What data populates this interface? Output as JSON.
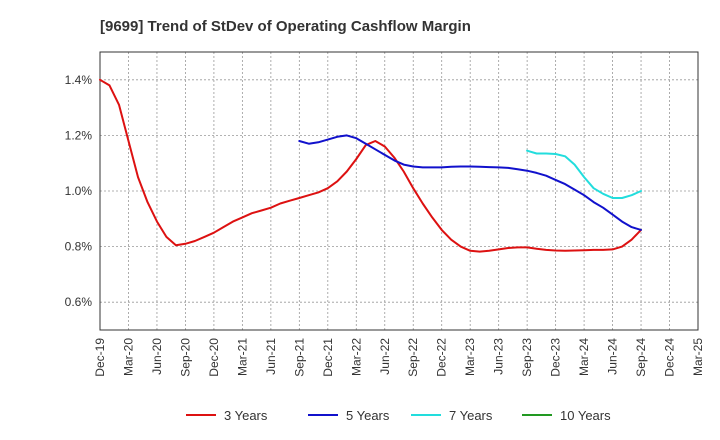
{
  "chart_data": {
    "type": "line",
    "title": "[9699]  Trend of StDev of Operating Cashflow Margin",
    "xlabel": "",
    "ylabel": "",
    "ylim": [
      0.5,
      1.5
    ],
    "yticks": [
      "0.6%",
      "0.8%",
      "1.0%",
      "1.2%",
      "1.4%"
    ],
    "ytick_values": [
      0.6,
      0.8,
      1.0,
      1.2,
      1.4
    ],
    "xticks": [
      "Dec-19",
      "Mar-20",
      "Jun-20",
      "Sep-20",
      "Dec-20",
      "Mar-21",
      "Jun-21",
      "Sep-21",
      "Dec-21",
      "Mar-22",
      "Jun-22",
      "Sep-22",
      "Dec-22",
      "Mar-23",
      "Jun-23",
      "Sep-23",
      "Dec-23",
      "Mar-24",
      "Jun-24",
      "Sep-24",
      "Dec-24",
      "Mar-25"
    ],
    "grid": true,
    "legend_position": "bottom",
    "series": [
      {
        "name": "3 Years",
        "color": "#dd1111",
        "x": [
          "Dec-19",
          "Jan-20",
          "Feb-20",
          "Mar-20",
          "Apr-20",
          "May-20",
          "Jun-20",
          "Jul-20",
          "Aug-20",
          "Sep-20",
          "Oct-20",
          "Nov-20",
          "Dec-20",
          "Jan-21",
          "Feb-21",
          "Mar-21",
          "Apr-21",
          "May-21",
          "Jun-21",
          "Jul-21",
          "Aug-21",
          "Sep-21",
          "Oct-21",
          "Nov-21",
          "Dec-21",
          "Jan-22",
          "Feb-22",
          "Mar-22",
          "Apr-22",
          "May-22",
          "Jun-22",
          "Jul-22",
          "Aug-22",
          "Sep-22",
          "Oct-22",
          "Nov-22",
          "Dec-22",
          "Jan-23",
          "Feb-23",
          "Mar-23",
          "Apr-23",
          "May-23",
          "Jun-23",
          "Jul-23",
          "Aug-23",
          "Sep-23",
          "Oct-23",
          "Nov-23",
          "Dec-23",
          "Jan-24",
          "Feb-24",
          "Mar-24",
          "Apr-24",
          "May-24",
          "Jun-24",
          "Jul-24",
          "Aug-24",
          "Sep-24"
        ],
        "values": [
          1.4,
          1.38,
          1.31,
          1.18,
          1.05,
          0.96,
          0.89,
          0.835,
          0.805,
          0.81,
          0.82,
          0.835,
          0.85,
          0.87,
          0.89,
          0.905,
          0.92,
          0.93,
          0.94,
          0.955,
          0.965,
          0.975,
          0.985,
          0.995,
          1.01,
          1.035,
          1.07,
          1.115,
          1.165,
          1.18,
          1.16,
          1.12,
          1.07,
          1.01,
          0.955,
          0.905,
          0.86,
          0.825,
          0.8,
          0.785,
          0.782,
          0.785,
          0.79,
          0.795,
          0.797,
          0.797,
          0.792,
          0.788,
          0.786,
          0.785,
          0.786,
          0.787,
          0.788,
          0.788,
          0.79,
          0.8,
          0.825,
          0.86
        ]
      },
      {
        "name": "5 Years",
        "color": "#1111cc",
        "x": [
          "Sep-21",
          "Oct-21",
          "Nov-21",
          "Dec-21",
          "Jan-22",
          "Feb-22",
          "Mar-22",
          "Apr-22",
          "May-22",
          "Jun-22",
          "Jul-22",
          "Aug-22",
          "Sep-22",
          "Oct-22",
          "Nov-22",
          "Dec-22",
          "Jan-23",
          "Feb-23",
          "Mar-23",
          "Apr-23",
          "May-23",
          "Jun-23",
          "Jul-23",
          "Aug-23",
          "Sep-23",
          "Oct-23",
          "Nov-23",
          "Dec-23",
          "Jan-24",
          "Feb-24",
          "Mar-24",
          "Apr-24",
          "May-24",
          "Jun-24",
          "Jul-24",
          "Aug-24",
          "Sep-24"
        ],
        "values": [
          1.18,
          1.17,
          1.175,
          1.185,
          1.195,
          1.2,
          1.19,
          1.17,
          1.15,
          1.13,
          1.11,
          1.095,
          1.088,
          1.085,
          1.085,
          1.085,
          1.087,
          1.088,
          1.088,
          1.087,
          1.086,
          1.085,
          1.083,
          1.078,
          1.073,
          1.065,
          1.055,
          1.04,
          1.025,
          1.005,
          0.985,
          0.96,
          0.94,
          0.915,
          0.89,
          0.87,
          0.86
        ]
      },
      {
        "name": "7 Years",
        "color": "#22dddd",
        "x": [
          "Sep-23",
          "Oct-23",
          "Nov-23",
          "Dec-23",
          "Jan-24",
          "Feb-24",
          "Mar-24",
          "Apr-24",
          "May-24",
          "Jun-24",
          "Jul-24",
          "Aug-24",
          "Sep-24"
        ],
        "values": [
          1.145,
          1.135,
          1.135,
          1.133,
          1.125,
          1.095,
          1.05,
          1.01,
          0.99,
          0.975,
          0.975,
          0.985,
          1.0
        ]
      },
      {
        "name": "10 Years",
        "color": "#229922",
        "x": [],
        "values": []
      }
    ]
  }
}
